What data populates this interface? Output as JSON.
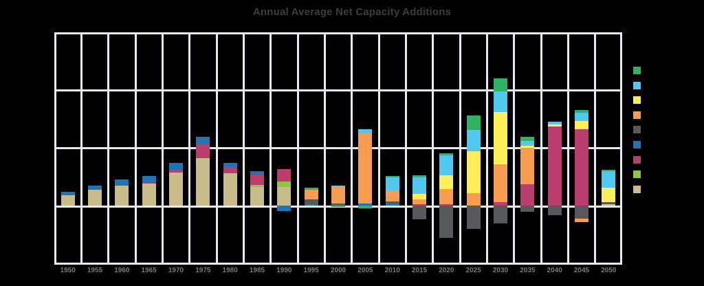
{
  "title": "Annual Average Net Capacity Additions",
  "colors": {
    "background": "#000000",
    "gridline": "#e8eaf2",
    "title_text": "#3d3d3d",
    "axis_label_text": "#7b7b7b"
  },
  "chart_data": {
    "type": "bar",
    "stacked": true,
    "title": "Annual Average Net Capacity Additions",
    "xlabel": "",
    "ylabel": "",
    "grid": true,
    "y_tick_labels_visible": false,
    "ylim": [
      -50,
      150
    ],
    "gridline_step": 50,
    "legend_position": "right",
    "legend_labels_visible": false,
    "legend_order_top_to_bottom": [
      "green",
      "cyan",
      "yellow",
      "orange",
      "gray",
      "blue",
      "magenta",
      "light-green",
      "tan"
    ],
    "categories": [
      "1950",
      "1955",
      "1960",
      "1965",
      "1970",
      "1975",
      "1980",
      "1985",
      "1990",
      "1995",
      "2000",
      "2005",
      "2010",
      "2015",
      "2020",
      "2025",
      "2030",
      "2035",
      "2040",
      "2045",
      "2050"
    ],
    "series": [
      {
        "name": "tan",
        "color": "#c7bc8a",
        "values": [
          9.2,
          13.5,
          17.5,
          19,
          28.8,
          41,
          28,
          16,
          16.3,
          0,
          0,
          0,
          0,
          0,
          0,
          0,
          0,
          0,
          0,
          0,
          1.2
        ]
      },
      {
        "name": "light-green",
        "color": "#8dc63f",
        "values": [
          0,
          0,
          0,
          0,
          0,
          0,
          0,
          2,
          4.6,
          0,
          0,
          0,
          0,
          0,
          0,
          0,
          0,
          0,
          0,
          0,
          0
        ]
      },
      {
        "name": "magenta",
        "color": "#bb3d6e",
        "values": [
          0,
          0,
          0,
          0.8,
          2.1,
          12.5,
          5.4,
          8.9,
          10.7,
          0,
          0,
          0,
          0,
          1.4,
          1.4,
          0,
          3,
          18.3,
          68.3,
          66.3,
          0
        ]
      },
      {
        "name": "blue",
        "color": "#1b75bb",
        "values": [
          2.7,
          4,
          5.4,
          6,
          5.8,
          6,
          3.6,
          3,
          -4.8,
          1.2,
          0,
          2,
          1.6,
          0,
          0,
          0,
          0,
          0,
          0,
          0,
          0
        ]
      },
      {
        "name": "gray",
        "color": "#58595b",
        "values": [
          0,
          0,
          0,
          0,
          0,
          0,
          0,
          0,
          0,
          4,
          1.8,
          0,
          1.8,
          -12.1,
          -28,
          -20.1,
          -15.5,
          -5.4,
          -8.3,
          -11.3,
          2
        ]
      },
      {
        "name": "orange",
        "color": "#f89c4f",
        "values": [
          0,
          0,
          0,
          0,
          0,
          0,
          0,
          0,
          0,
          8.5,
          14.3,
          61,
          9.5,
          4,
          12.9,
          10.9,
          32.7,
          31.7,
          0,
          -3,
          0
        ]
      },
      {
        "name": "yellow",
        "color": "#ffee55",
        "values": [
          0,
          0,
          0,
          0,
          0,
          0,
          0,
          0,
          0,
          0,
          0,
          0,
          0,
          4.9,
          11.9,
          36.1,
          45.1,
          1.6,
          2,
          7.1,
          12.3
        ]
      },
      {
        "name": "cyan",
        "color": "#4fc8f2",
        "values": [
          0,
          0,
          0,
          0,
          0,
          0,
          0,
          0,
          0,
          0,
          1.2,
          3,
          11.3,
          13.9,
          17.3,
          18.3,
          17.9,
          4.3,
          2.6,
          7.1,
          14.3
        ]
      },
      {
        "name": "green",
        "color": "#2db463",
        "values": [
          0,
          0,
          0,
          0,
          0,
          0,
          0,
          0,
          0,
          2,
          -1,
          -2.4,
          1.2,
          2,
          1.8,
          12.9,
          11.5,
          3.6,
          0,
          2.4,
          1.2
        ]
      }
    ]
  }
}
